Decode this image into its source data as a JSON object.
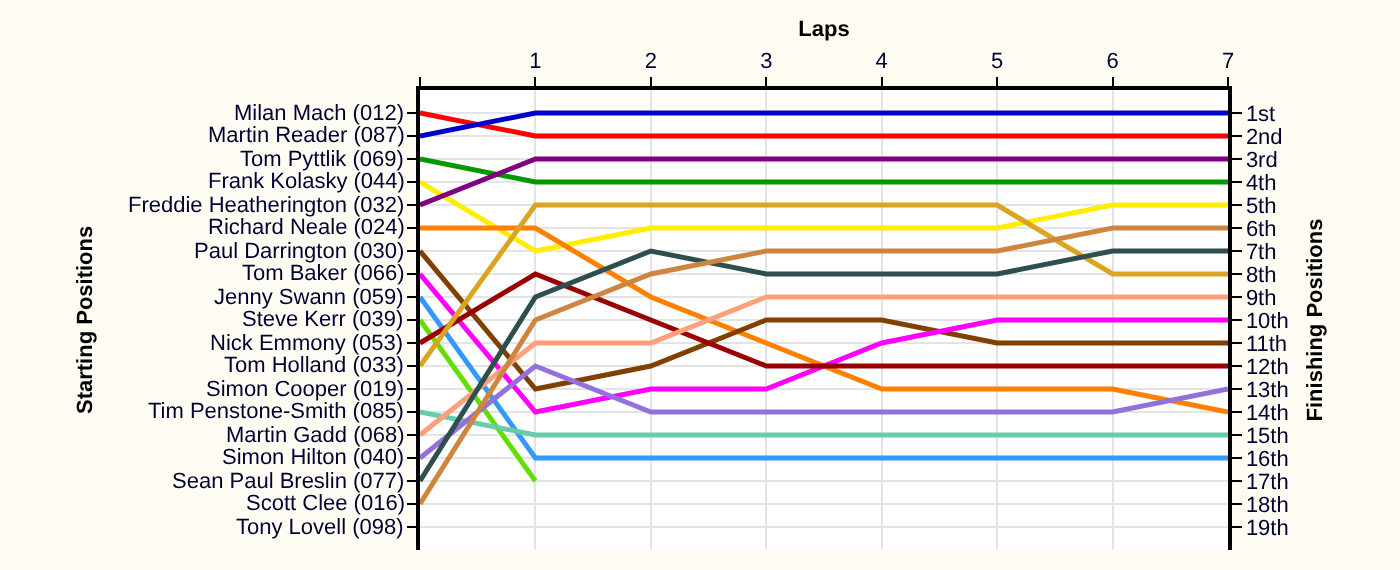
{
  "chart_data": {
    "type": "line",
    "xlabel": "Laps",
    "ylabel": "Finishing Positions",
    "x": [
      0,
      1,
      2,
      3,
      4,
      5,
      6,
      7
    ],
    "xlim": [
      0,
      7
    ],
    "xticks": [
      {
        "value": 0,
        "label": null
      },
      1,
      2,
      3,
      4,
      5,
      6,
      7
    ],
    "ylim": [
      20,
      0
    ],
    "yticks": [
      {
        "value": 1,
        "label": "1st"
      },
      {
        "value": 2,
        "label": "2nd"
      },
      {
        "value": 3,
        "label": "3rd"
      },
      {
        "value": 4,
        "label": "4th"
      },
      {
        "value": 5,
        "label": "5th"
      },
      {
        "value": 6,
        "label": "6th"
      },
      {
        "value": 7,
        "label": "7th"
      },
      {
        "value": 8,
        "label": "8th"
      },
      {
        "value": 9,
        "label": "9th"
      },
      {
        "value": 10,
        "label": "10th"
      },
      {
        "value": 11,
        "label": "11th"
      },
      {
        "value": 12,
        "label": "12th"
      },
      {
        "value": 13,
        "label": "13th"
      },
      {
        "value": 14,
        "label": "14th"
      },
      {
        "value": 15,
        "label": "15th"
      },
      {
        "value": 16,
        "label": "16th"
      },
      {
        "value": 17,
        "label": "17th"
      },
      {
        "value": 18,
        "label": "18th"
      },
      {
        "value": 19,
        "label": "19th"
      }
    ],
    "annotations": [
      "Starting Positions",
      "Milan Mach (012)",
      "Martin Reader (087)",
      "Tom Pyttlik (069)",
      "Frank Kolasky (044)",
      "Freddie Heatherington (032)",
      "Richard Neale (024)",
      "Paul Darrington (030)",
      "Tom Baker (066)",
      "Jenny Swann (059)",
      "Steve Kerr (039)",
      "Nick Emmony (053)",
      "Tom Holland (033)",
      "Simon Cooper (019)",
      "Tim Penstone-Smith (085)",
      "Martin Gadd (068)",
      "Simon Hilton (040)",
      "Sean Paul Breslin (077)",
      "Scott Clee (016)",
      "Tony Lovell (098)"
    ],
    "grid": true,
    "marker": "none",
    "line_style": "solid",
    "series": [
      {
        "color": "#ff0000",
        "values": [
          1,
          2,
          2,
          2,
          2,
          2,
          2,
          2
        ]
      },
      {
        "color": "#0000cc",
        "values": [
          2,
          1,
          1,
          1,
          1,
          1,
          1,
          1
        ]
      },
      {
        "color": "#009900",
        "values": [
          3,
          4,
          4,
          4,
          4,
          4,
          4,
          4
        ]
      },
      {
        "color": "#ffee00",
        "values": [
          4,
          7,
          6,
          6,
          6,
          6,
          5,
          5
        ]
      },
      {
        "color": "#800080",
        "values": [
          5,
          3,
          3,
          3,
          3,
          3,
          3,
          3
        ]
      },
      {
        "color": "#ff8000",
        "values": [
          6,
          6,
          9,
          11,
          13,
          13,
          13,
          14
        ]
      },
      {
        "color": "#804000",
        "values": [
          7,
          13,
          12,
          10,
          10,
          11,
          11,
          11
        ]
      },
      {
        "color": "#ff00ff",
        "values": [
          8,
          14,
          13,
          13,
          11,
          10,
          10,
          10
        ]
      },
      {
        "color": "#3399ff",
        "values": [
          9,
          16,
          16,
          16,
          16,
          16,
          16,
          16
        ]
      },
      {
        "color": "#66dd00",
        "values": [
          10,
          17,
          null,
          null,
          null,
          null,
          null,
          null
        ]
      },
      {
        "color": "#990000",
        "values": [
          11,
          8,
          10,
          12,
          12,
          12,
          12,
          12
        ]
      },
      {
        "color": "#daa520",
        "values": [
          12,
          5,
          5,
          5,
          5,
          5,
          8,
          8
        ]
      },
      {
        "color": "#66ccaa",
        "values": [
          14,
          15,
          15,
          15,
          15,
          15,
          15,
          15
        ]
      },
      {
        "color": "#ffa07a",
        "values": [
          15,
          11,
          11,
          9,
          9,
          9,
          9,
          9
        ]
      },
      {
        "color": "#9370db",
        "values": [
          16,
          12,
          14,
          14,
          14,
          14,
          14,
          13
        ]
      },
      {
        "color": "#2f4f4f",
        "values": [
          17,
          9,
          7,
          8,
          8,
          8,
          7,
          7
        ]
      },
      {
        "color": "#cd853f",
        "values": [
          18,
          10,
          8,
          7,
          7,
          7,
          6,
          6
        ]
      }
    ]
  }
}
